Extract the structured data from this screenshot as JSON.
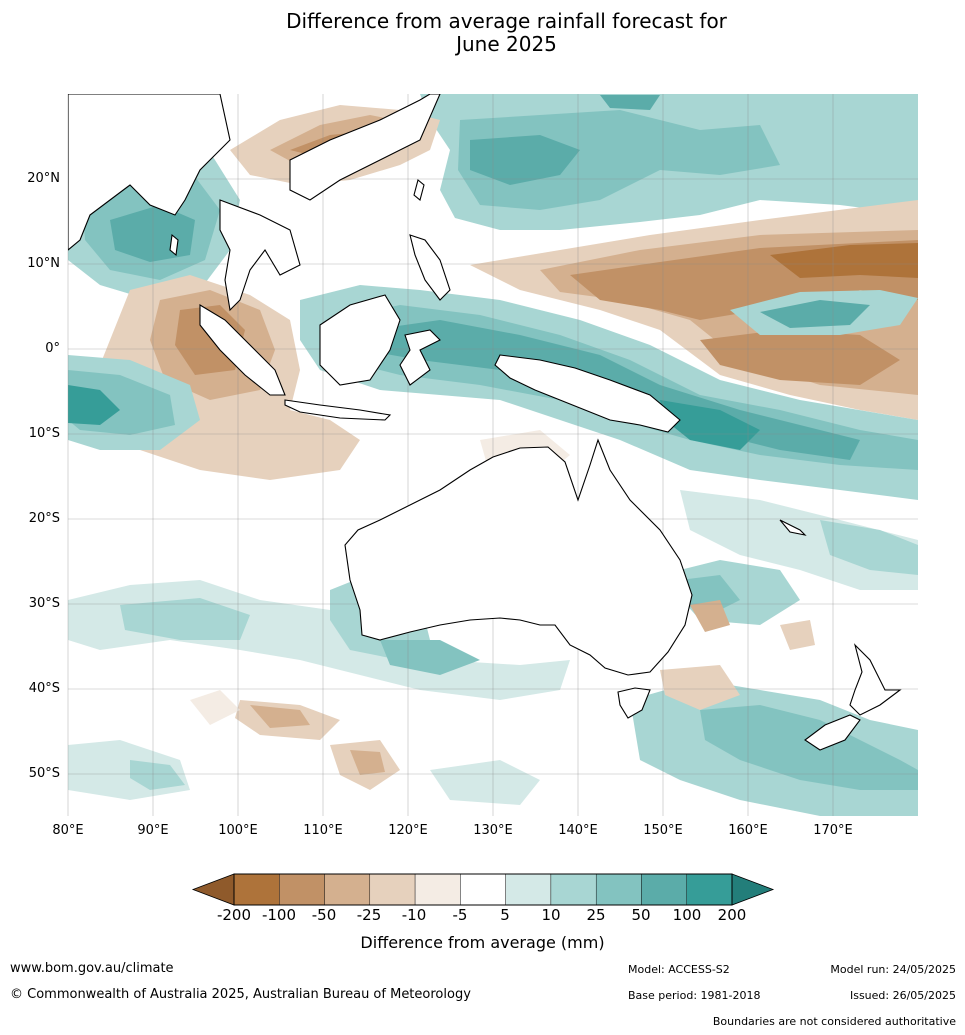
{
  "title": {
    "line1": "Difference from average rainfall forecast for",
    "line2": "June 2025"
  },
  "map": {
    "lat_labels": [
      "20°N",
      "10°N",
      "0°",
      "10°S",
      "20°S",
      "30°S",
      "40°S",
      "50°S"
    ],
    "lon_labels": [
      "80°E",
      "90°E",
      "100°E",
      "110°E",
      "120°E",
      "130°E",
      "140°E",
      "150°E",
      "160°E",
      "170°E"
    ],
    "lat_range": [
      -55,
      30
    ],
    "lon_range": [
      80,
      180
    ],
    "gridlines": true
  },
  "colorbar": {
    "title": "Difference from average (mm)",
    "labels": [
      "-200",
      "-100",
      "-50",
      "-25",
      "-10",
      "-5",
      "5",
      "10",
      "25",
      "50",
      "100",
      "200"
    ],
    "colors": [
      "#8f5a2b",
      "#ae733a",
      "#c19166",
      "#d4b08f",
      "#e6d1bd",
      "#f4ece4",
      "#ffffff",
      "#d4e9e7",
      "#a8d6d3",
      "#83c3c0",
      "#5baca9",
      "#369d98",
      "#237e7a"
    ]
  },
  "footer": {
    "url": "www.bom.gov.au/climate",
    "copyright": "© Commonwealth of Australia 2025, Australian Bureau of Meteorology",
    "model": "Model: ACCESS-S2",
    "base_period": "Base period: 1981-2018",
    "model_run": "Model run: 24/05/2025",
    "issued": "Issued: 26/05/2025",
    "disclaimer": "Boundaries are not considered authoritative"
  }
}
